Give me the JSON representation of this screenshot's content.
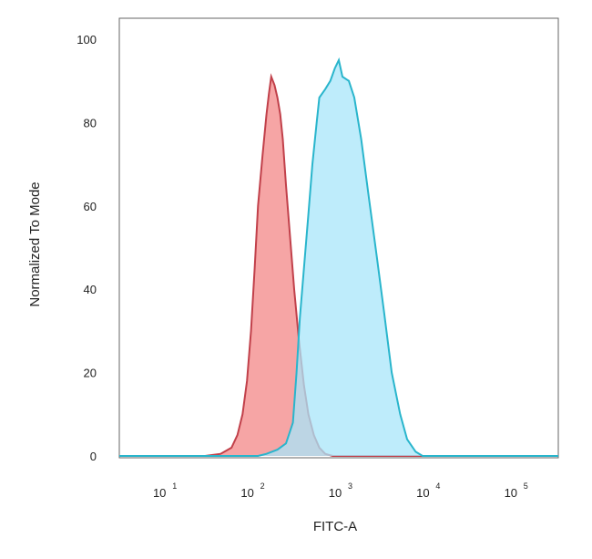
{
  "chart_data": {
    "type": "area",
    "title": "",
    "xlabel": "FITC-A",
    "ylabel": "Normalized To Mode",
    "x_scale": "log",
    "xlim": [
      3.16,
      316228
    ],
    "ylim": [
      0,
      100
    ],
    "grid": false,
    "y_ticks": [
      "0",
      "20",
      "40",
      "60",
      "80",
      "100"
    ],
    "x_ticks": [
      {
        "base": "10",
        "exp": "1",
        "value": 10
      },
      {
        "base": "10",
        "exp": "2",
        "value": 100
      },
      {
        "base": "10",
        "exp": "3",
        "value": 1000
      },
      {
        "base": "10",
        "exp": "4",
        "value": 10000
      },
      {
        "base": "10",
        "exp": "5",
        "value": 100000
      }
    ],
    "series": [
      {
        "color_fill": "#f5a0a0",
        "color_line": "#c1404a",
        "points": [
          [
            3.16,
            0
          ],
          [
            30,
            0
          ],
          [
            45,
            0.5
          ],
          [
            60,
            2
          ],
          [
            70,
            5
          ],
          [
            80,
            10
          ],
          [
            90,
            18
          ],
          [
            100,
            30
          ],
          [
            110,
            45
          ],
          [
            120,
            60
          ],
          [
            135,
            72
          ],
          [
            150,
            82
          ],
          [
            160,
            87
          ],
          [
            170,
            91
          ],
          [
            185,
            89
          ],
          [
            200,
            86
          ],
          [
            215,
            82
          ],
          [
            230,
            76
          ],
          [
            250,
            65
          ],
          [
            280,
            52
          ],
          [
            310,
            40
          ],
          [
            350,
            28
          ],
          [
            400,
            17
          ],
          [
            450,
            10
          ],
          [
            520,
            5
          ],
          [
            600,
            2
          ],
          [
            700,
            0.5
          ],
          [
            850,
            0
          ],
          [
            316228,
            0
          ]
        ]
      },
      {
        "color_fill": "#a8e6fa",
        "color_line": "#29b5cc",
        "points": [
          [
            3.16,
            0
          ],
          [
            120,
            0
          ],
          [
            150,
            0.5
          ],
          [
            200,
            1.5
          ],
          [
            250,
            3
          ],
          [
            300,
            8
          ],
          [
            330,
            20
          ],
          [
            360,
            33
          ],
          [
            400,
            45
          ],
          [
            450,
            58
          ],
          [
            500,
            70
          ],
          [
            560,
            80
          ],
          [
            600,
            86
          ],
          [
            700,
            88
          ],
          [
            800,
            90
          ],
          [
            900,
            93
          ],
          [
            1000,
            95
          ],
          [
            1100,
            91
          ],
          [
            1300,
            90
          ],
          [
            1500,
            86
          ],
          [
            1800,
            76
          ],
          [
            2200,
            62
          ],
          [
            2700,
            48
          ],
          [
            3300,
            34
          ],
          [
            4000,
            20
          ],
          [
            5000,
            10
          ],
          [
            6000,
            4
          ],
          [
            7500,
            1
          ],
          [
            9000,
            0
          ],
          [
            316228,
            0
          ]
        ]
      }
    ]
  }
}
